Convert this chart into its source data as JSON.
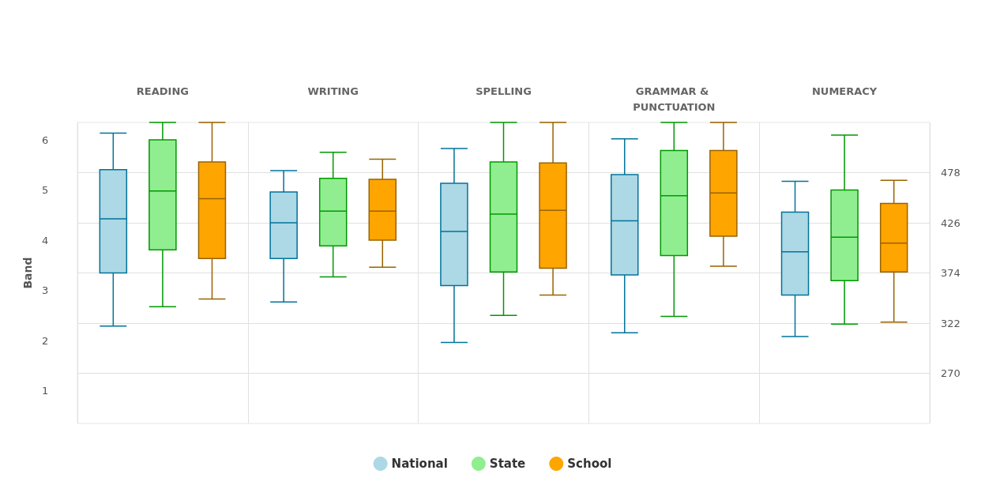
{
  "chart_data": {
    "type": "box",
    "ylabel": "Band",
    "categories": [
      "READING",
      "WRITING",
      "SPELLING",
      "GRAMMAR & PUNCTUATION",
      "NUMERACY"
    ],
    "ylim": [
      0.35,
      6.35
    ],
    "yticks": [
      1,
      2,
      3,
      4,
      5,
      6
    ],
    "y2lim": [
      218,
      530
    ],
    "y2ticks": [
      270,
      322,
      374,
      426,
      478
    ],
    "grid": true,
    "legend": "bottom",
    "series": [
      {
        "name": "National",
        "color": "#add8e6",
        "axis": "y2",
        "boxes": [
          {
            "low": 319,
            "q1": 374,
            "median": 430,
            "q3": 481,
            "high": 519
          },
          {
            "low": 344,
            "q1": 389,
            "median": 426,
            "q3": 458,
            "high": 480
          },
          {
            "low": 302,
            "q1": 361,
            "median": 417,
            "q3": 467,
            "high": 503
          },
          {
            "low": 312,
            "q1": 372,
            "median": 428,
            "q3": 476,
            "high": 513
          },
          {
            "low": 308,
            "q1": 351,
            "median": 396,
            "q3": 437,
            "high": 469
          }
        ]
      },
      {
        "name": "State",
        "color": "#90ee90",
        "axis": "y2",
        "boxes": [
          {
            "low": 339,
            "q1": 398,
            "median": 459,
            "q3": 512,
            "high": 530
          },
          {
            "low": 370,
            "q1": 402,
            "median": 438,
            "q3": 472,
            "high": 499
          },
          {
            "low": 330,
            "q1": 375,
            "median": 435,
            "q3": 489,
            "high": 530
          },
          {
            "low": 329,
            "q1": 392,
            "median": 454,
            "q3": 501,
            "high": 530
          },
          {
            "low": 321,
            "q1": 366,
            "median": 411,
            "q3": 460,
            "high": 517
          }
        ]
      },
      {
        "name": "School",
        "color": "#ffa500",
        "axis": "y2",
        "boxes": [
          {
            "low": 347,
            "q1": 389,
            "median": 451,
            "q3": 489,
            "high": 530
          },
          {
            "low": 380,
            "q1": 408,
            "median": 438,
            "q3": 471,
            "high": 492
          },
          {
            "low": 351,
            "q1": 379,
            "median": 439,
            "q3": 488,
            "high": 530
          },
          {
            "low": 381,
            "q1": 412,
            "median": 457,
            "q3": 501,
            "high": 530
          },
          {
            "low": 323,
            "q1": 375,
            "median": 405,
            "q3": 446,
            "high": 470
          }
        ]
      }
    ]
  }
}
